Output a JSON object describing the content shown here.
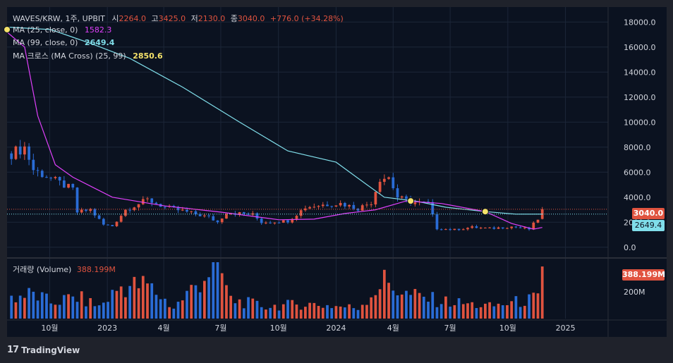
{
  "header": {
    "symbol": "WAVES/KRW, 1주, UPBIT",
    "o_label": "시",
    "o_value": "2264.0",
    "h_label": "고",
    "h_value": "3425.0",
    "l_label": "저",
    "l_value": "2130.0",
    "c_label": "종",
    "c_value": "3040.0",
    "change": "+776.0 (+34.28%)"
  },
  "indicators": {
    "ma25": {
      "label": "MA (25, close, 0)",
      "value": "1582.3",
      "color": "#e040fb"
    },
    "ma99": {
      "label": "MA (99, close, 0)",
      "value": "2649.4",
      "color": "#80deea"
    },
    "cross": {
      "label": "MA 크로스 (MA Cross) (25, 99)",
      "value": "2850.6",
      "color": "#f5e26a"
    }
  },
  "volume": {
    "label": "거래량 (Volume)",
    "value": "388.199M",
    "tick": "200M"
  },
  "price_tags": {
    "last": "3040.0",
    "ma99": "2649.4"
  },
  "brand": {
    "name": "TradingView",
    "mark": "17"
  },
  "colors": {
    "up": "#e0533f",
    "down": "#2a6cd6",
    "bg": "#0b1220",
    "axis_text": "#d1d4dc"
  },
  "chart_data": {
    "type": "candlestick",
    "interval": "1 week",
    "y_ticks": [
      0,
      2000,
      4000,
      6000,
      8000,
      10000,
      12000,
      14000,
      16000,
      18000
    ],
    "y_tick_labels": [
      "0.0",
      "2000.0",
      "4000.0",
      "6000.0",
      "8000.0",
      "10000.0",
      "12000.0",
      "14000.0",
      "16000.0",
      "18000.0"
    ],
    "ylim": [
      -800,
      19200
    ],
    "x_labels": [
      "10월",
      "2023",
      "4월",
      "7월",
      "10월",
      "2024",
      "4월",
      "7월",
      "10월",
      "2025"
    ],
    "x_label_dates": [
      "2022-10-01",
      "2023-01-01",
      "2023-04-01",
      "2023-07-01",
      "2023-10-01",
      "2024-01-01",
      "2024-04-01",
      "2024-07-01",
      "2024-10-01",
      "2025-01-01"
    ],
    "xlim": [
      "2022-07-25",
      "2025-03-10"
    ],
    "price_key_points": [
      {
        "date": "2022-08-01",
        "close": 7500
      },
      {
        "date": "2022-08-22",
        "close": 8000
      },
      {
        "date": "2022-09-05",
        "close": 6200
      },
      {
        "date": "2022-10-03",
        "close": 5500
      },
      {
        "date": "2022-11-07",
        "close": 4600
      },
      {
        "date": "2022-11-14",
        "close": 2800
      },
      {
        "date": "2022-12-05",
        "close": 3000
      },
      {
        "date": "2022-12-26",
        "close": 1800
      },
      {
        "date": "2023-01-09",
        "close": 1700
      },
      {
        "date": "2023-01-30",
        "close": 3000
      },
      {
        "date": "2023-03-06",
        "close": 3800
      },
      {
        "date": "2023-04-03",
        "close": 3200
      },
      {
        "date": "2023-05-01",
        "close": 2900
      },
      {
        "date": "2023-06-12",
        "close": 2400
      },
      {
        "date": "2023-06-26",
        "close": 2000
      },
      {
        "date": "2023-07-10",
        "close": 2800
      },
      {
        "date": "2023-08-21",
        "close": 2600
      },
      {
        "date": "2023-09-04",
        "close": 2000
      },
      {
        "date": "2023-10-16",
        "close": 2100
      },
      {
        "date": "2023-11-13",
        "close": 3200
      },
      {
        "date": "2023-12-11",
        "close": 3400
      },
      {
        "date": "2024-01-08",
        "close": 3500
      },
      {
        "date": "2024-02-05",
        "close": 3100
      },
      {
        "date": "2024-02-26",
        "close": 3600
      },
      {
        "date": "2024-03-11",
        "close": 5500
      },
      {
        "date": "2024-03-25",
        "close": 5600
      },
      {
        "date": "2024-04-08",
        "close": 4000
      },
      {
        "date": "2024-04-29",
        "close": 3600
      },
      {
        "date": "2024-05-27",
        "close": 3500
      },
      {
        "date": "2024-06-10",
        "close": 1500
      },
      {
        "date": "2024-07-08",
        "close": 1400
      },
      {
        "date": "2024-08-05",
        "close": 1600
      },
      {
        "date": "2024-09-02",
        "close": 1500
      },
      {
        "date": "2024-10-07",
        "close": 1650
      },
      {
        "date": "2024-11-04",
        "close": 1450
      },
      {
        "date": "2024-11-18",
        "close": 2264
      },
      {
        "date": "2024-11-25",
        "close": 3040
      }
    ],
    "ma25_key_points": [
      {
        "date": "2022-07-25",
        "value": 17200
      },
      {
        "date": "2022-08-22",
        "value": 16000
      },
      {
        "date": "2022-09-12",
        "value": 10500
      },
      {
        "date": "2022-10-10",
        "value": 6600
      },
      {
        "date": "2022-11-07",
        "value": 5600
      },
      {
        "date": "2023-01-09",
        "value": 4000
      },
      {
        "date": "2023-04-03",
        "value": 3300
      },
      {
        "date": "2023-07-03",
        "value": 2800
      },
      {
        "date": "2023-10-02",
        "value": 2200
      },
      {
        "date": "2023-11-27",
        "value": 2250
      },
      {
        "date": "2024-01-15",
        "value": 2700
      },
      {
        "date": "2024-03-04",
        "value": 3000
      },
      {
        "date": "2024-04-22",
        "value": 3700
      },
      {
        "date": "2024-06-17",
        "value": 3500
      },
      {
        "date": "2024-08-26",
        "value": 2850
      },
      {
        "date": "2024-10-07",
        "value": 1900
      },
      {
        "date": "2024-11-11",
        "value": 1450
      },
      {
        "date": "2024-11-25",
        "value": 1582.3
      }
    ],
    "ma99_key_points": [
      {
        "date": "2022-07-25",
        "value": 17600
      },
      {
        "date": "2022-10-03",
        "value": 17400
      },
      {
        "date": "2022-12-05",
        "value": 16300
      },
      {
        "date": "2023-02-06",
        "value": 15100
      },
      {
        "date": "2023-05-01",
        "value": 12800
      },
      {
        "date": "2023-07-31",
        "value": 10000
      },
      {
        "date": "2023-10-16",
        "value": 7700
      },
      {
        "date": "2024-01-01",
        "value": 6800
      },
      {
        "date": "2024-02-19",
        "value": 5000
      },
      {
        "date": "2024-03-18",
        "value": 4000
      },
      {
        "date": "2024-05-06",
        "value": 3700
      },
      {
        "date": "2024-06-24",
        "value": 3200
      },
      {
        "date": "2024-08-26",
        "value": 2850
      },
      {
        "date": "2024-10-14",
        "value": 2650
      },
      {
        "date": "2024-11-25",
        "value": 2649.4
      }
    ],
    "cross_points": [
      {
        "date": "2022-07-25",
        "value": 17400
      },
      {
        "date": "2024-04-29",
        "value": 3700
      },
      {
        "date": "2024-08-26",
        "value": 2850.6
      }
    ],
    "volume_key_points": [
      {
        "date": "2022-08-01",
        "value": 160
      },
      {
        "date": "2022-09-05",
        "value": 180
      },
      {
        "date": "2022-10-03",
        "value": 120
      },
      {
        "date": "2022-11-14",
        "value": 160
      },
      {
        "date": "2022-12-19",
        "value": 90
      },
      {
        "date": "2023-01-23",
        "value": 240
      },
      {
        "date": "2023-03-06",
        "value": 250
      },
      {
        "date": "2023-04-17",
        "value": 80
      },
      {
        "date": "2023-06-26",
        "value": 420
      },
      {
        "date": "2023-07-17",
        "value": 140
      },
      {
        "date": "2023-09-11",
        "value": 90
      },
      {
        "date": "2023-11-13",
        "value": 110
      },
      {
        "date": "2024-02-05",
        "value": 80
      },
      {
        "date": "2024-03-18",
        "value": 280
      },
      {
        "date": "2024-04-22",
        "value": 180
      },
      {
        "date": "2024-06-17",
        "value": 130
      },
      {
        "date": "2024-09-02",
        "value": 90
      },
      {
        "date": "2024-11-18",
        "value": 150
      },
      {
        "date": "2024-11-25",
        "value": 388.199
      }
    ],
    "volume_ylim": [
      0,
      420
    ]
  }
}
